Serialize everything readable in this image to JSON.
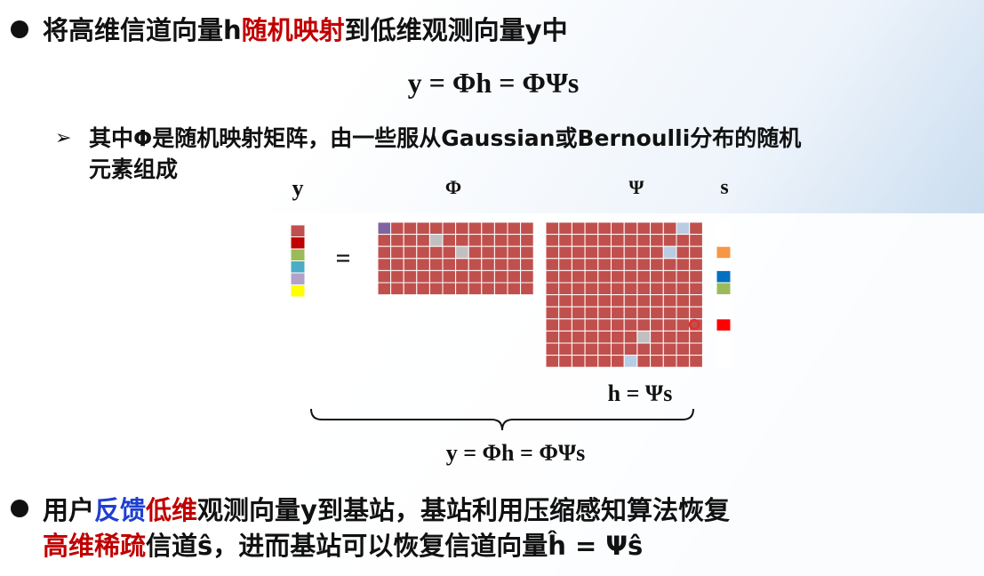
{
  "bullet1": {
    "parts": [
      "将高维信道向量h",
      "随机映射",
      "到低维观测向量y中"
    ]
  },
  "equation": "y = Φh = ΦΨs",
  "sub_bullet": {
    "lines": [
      "其中Φ是随机映射矩阵，由一些服从Gaussian或Bernoulli分布的随机",
      "元素组成"
    ]
  },
  "figure": {
    "label_y": "y",
    "label_phi": "Φ",
    "label_psi": "Ψ",
    "label_s": "s",
    "equals": "=",
    "h_eq": "h = Ψs",
    "y_eq": "y = Φh = ΦΨs"
  },
  "bullet2": {
    "line1": [
      "用户",
      "反馈",
      "低维",
      "观测向量y到基站，基站利用压缩感知算法恢复"
    ],
    "line2": [
      "高维稀疏",
      "信道ŝ，进而基站可以恢复信道向量ĥ = Ψŝ"
    ]
  }
}
